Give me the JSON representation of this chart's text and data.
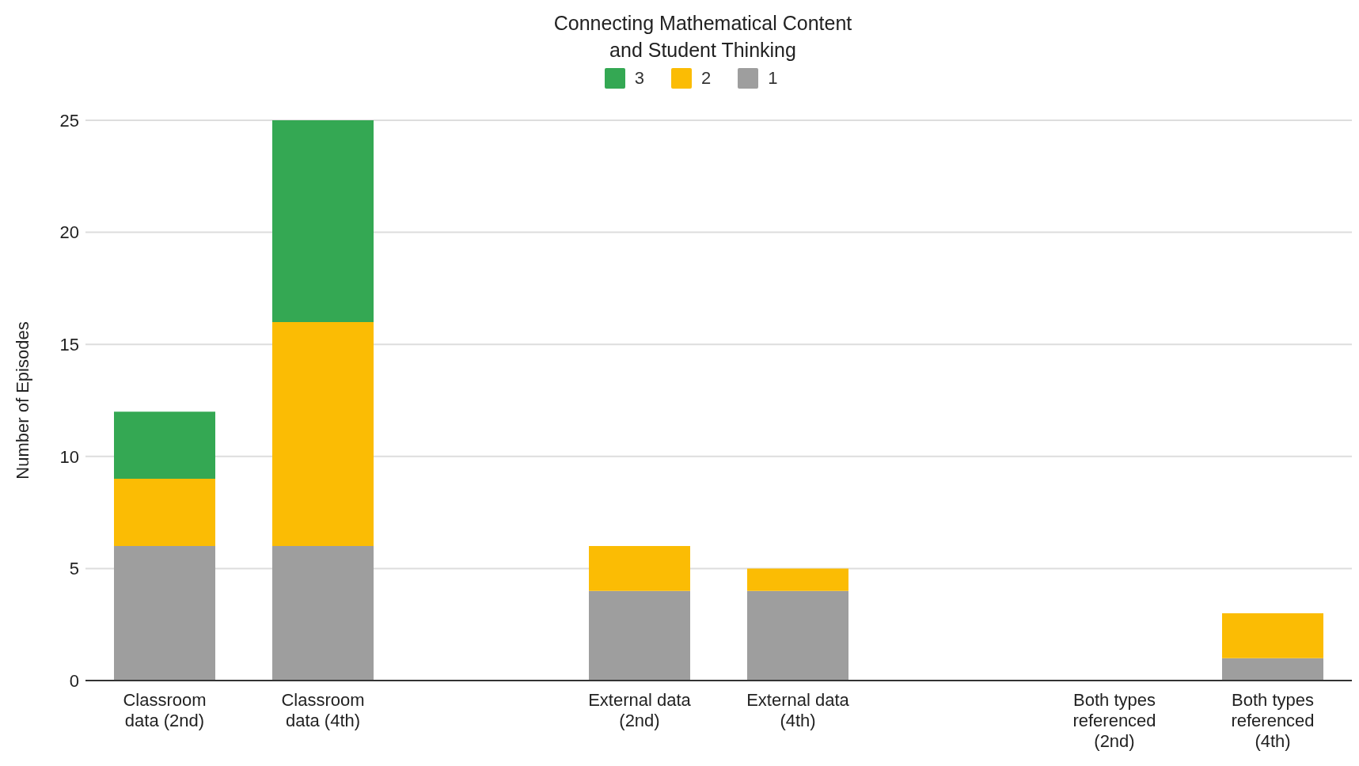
{
  "chart_data": {
    "type": "bar",
    "title": "Connecting Mathematical Content\nand Student Thinking",
    "ylabel": "Number of Episodes",
    "categories": [
      "Classroom data (2nd)",
      "Classroom data (4th)",
      null,
      "External data (2nd)",
      "External data (4th)",
      null,
      "Both types referenced (2nd)",
      "Both types referenced (4th)"
    ],
    "series": [
      {
        "name": "1",
        "color": "#9e9e9e",
        "values": [
          6,
          6,
          null,
          4,
          4,
          null,
          0,
          1
        ]
      },
      {
        "name": "2",
        "color": "#fbbc04",
        "values": [
          3,
          10,
          null,
          2,
          1,
          null,
          0,
          2
        ]
      },
      {
        "name": "3",
        "color": "#34a853",
        "values": [
          3,
          9,
          null,
          0,
          0,
          null,
          0,
          0
        ]
      }
    ],
    "stacked": true,
    "ylim": [
      0,
      25
    ],
    "yticks": [
      0,
      5,
      10,
      15,
      20,
      25
    ],
    "grid": "y",
    "legend": "top"
  }
}
